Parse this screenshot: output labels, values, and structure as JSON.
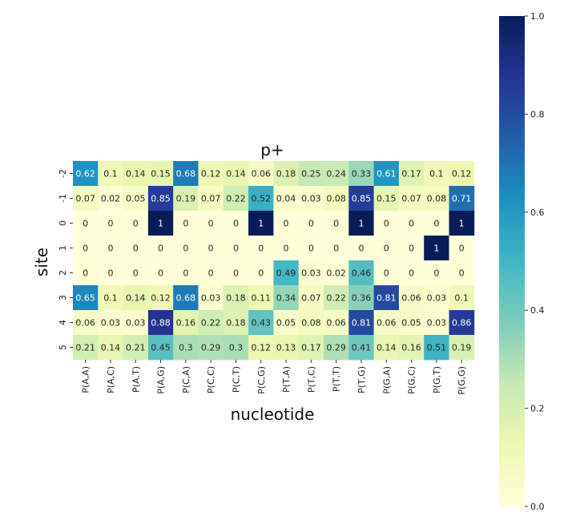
{
  "chart_data": {
    "type": "heatmap",
    "title": "p+",
    "xlabel": "nucleotide",
    "ylabel": "site",
    "colormap": "YlGnBu",
    "vmin": 0.0,
    "vmax": 1.0,
    "x_categories": [
      "P(A,A)",
      "P(A,C)",
      "P(A,T)",
      "P(A,G)",
      "P(C,A)",
      "P(C,C)",
      "P(C,T)",
      "P(C,G)",
      "P(T,A)",
      "P(T,C)",
      "P(T,T)",
      "P(T,G)",
      "P(G,A)",
      "P(G,C)",
      "P(G,T)",
      "P(G,G)"
    ],
    "y_categories": [
      "-2",
      "-1",
      "0",
      "1",
      "2",
      "3",
      "4",
      "5"
    ],
    "values": [
      [
        0.62,
        0.1,
        0.14,
        0.15,
        0.68,
        0.12,
        0.14,
        0.06,
        0.18,
        0.25,
        0.24,
        0.33,
        0.61,
        0.17,
        0.1,
        0.12
      ],
      [
        0.07,
        0.02,
        0.05,
        0.85,
        0.19,
        0.07,
        0.22,
        0.52,
        0.04,
        0.03,
        0.08,
        0.85,
        0.15,
        0.07,
        0.08,
        0.71
      ],
      [
        0,
        0,
        0,
        1,
        0,
        0,
        0,
        1,
        0,
        0,
        0,
        1,
        0,
        0,
        0,
        1
      ],
      [
        0,
        0,
        0,
        0,
        0,
        0,
        0,
        0,
        0,
        0,
        0,
        0,
        0,
        0,
        1,
        0
      ],
      [
        0,
        0,
        0,
        0,
        0,
        0,
        0,
        0,
        0.49,
        0.03,
        0.02,
        0.46,
        0,
        0,
        0,
        0
      ],
      [
        0.65,
        0.1,
        0.14,
        0.12,
        0.68,
        0.03,
        0.18,
        0.11,
        0.34,
        0.07,
        0.22,
        0.36,
        0.81,
        0.06,
        0.03,
        0.1
      ],
      [
        0.06,
        0.03,
        0.03,
        0.88,
        0.16,
        0.22,
        0.18,
        0.43,
        0.05,
        0.08,
        0.06,
        0.81,
        0.06,
        0.05,
        0.03,
        0.86
      ],
      [
        0.21,
        0.14,
        0.21,
        0.45,
        0.3,
        0.29,
        0.3,
        0.12,
        0.13,
        0.17,
        0.29,
        0.41,
        0.14,
        0.16,
        0.51,
        0.19
      ]
    ],
    "colorbar_ticks": [
      "0.0",
      "0.2",
      "0.4",
      "0.6",
      "0.8",
      "1.0"
    ],
    "annotations": "cell values shown in each cell",
    "grid": false
  }
}
